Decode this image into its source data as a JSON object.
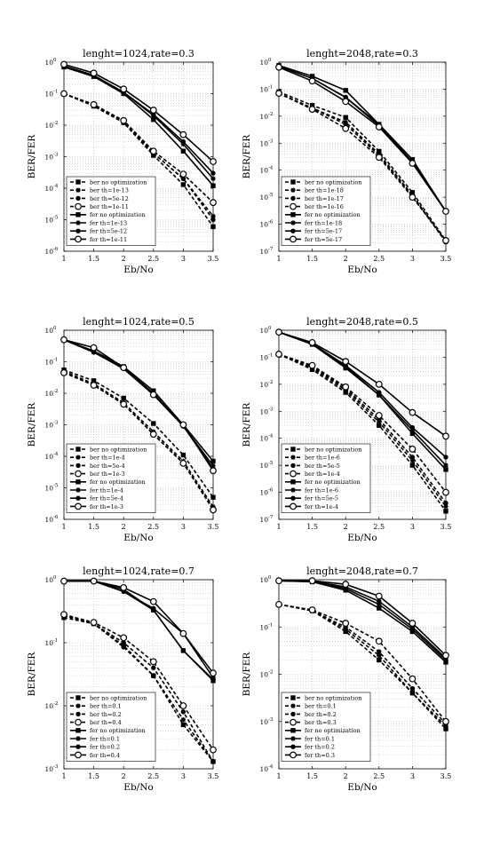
{
  "figure": {
    "ylabel": "BER/FER",
    "xlabel": "Eb/No"
  },
  "chart_data": [
    {
      "type": "line",
      "title": "lenght=1024,rate=0.3",
      "xlabel": "Eb/No",
      "ylabel": "BER/FER",
      "yscale": "log",
      "xlim": [
        1,
        3.5
      ],
      "ylim_exp": [
        -6,
        0
      ],
      "x_ticks": [
        "1",
        "1.5",
        "2",
        "2.5",
        "3",
        "3.5"
      ],
      "y_tick_labels": [
        "10",
        "10",
        "10",
        "10",
        "10",
        "10",
        "10"
      ],
      "y_tick_exponents": [
        "-6",
        "-5",
        "-4",
        "-3",
        "-2",
        "-1",
        "0"
      ],
      "grid": true,
      "legend_position": "lower-left",
      "x": [
        1,
        1.5,
        2,
        2.5,
        3,
        3.5
      ],
      "series": [
        {
          "name": "ber no optimization",
          "style": "dashed",
          "marker": "square",
          "values": [
            0.1,
            0.04,
            0.012,
            0.0011,
            0.00013,
            6e-06
          ]
        },
        {
          "name": "ber th=1e-13",
          "style": "dashed",
          "marker": "star",
          "values": [
            0.1,
            0.045,
            0.013,
            0.0013,
            0.0002,
            1.3e-05
          ]
        },
        {
          "name": "ber th=5e-12",
          "style": "dashed",
          "marker": "dot",
          "values": [
            0.1,
            0.045,
            0.013,
            0.0013,
            0.0002,
            1e-05
          ]
        },
        {
          "name": "ber th=1e-11",
          "style": "dashed",
          "marker": "circle",
          "values": [
            0.1,
            0.045,
            0.014,
            0.0015,
            0.00028,
            3.5e-05
          ]
        },
        {
          "name": "fer no optimization",
          "style": "solid",
          "marker": "square",
          "values": [
            0.7,
            0.35,
            0.1,
            0.015,
            0.0015,
            0.00012
          ]
        },
        {
          "name": "fer th=1e-13",
          "style": "solid",
          "marker": "star",
          "values": [
            0.75,
            0.38,
            0.11,
            0.02,
            0.0025,
            0.0002
          ]
        },
        {
          "name": "fer th=5e-12",
          "style": "solid",
          "marker": "dot",
          "values": [
            0.75,
            0.38,
            0.11,
            0.022,
            0.003,
            0.0003
          ]
        },
        {
          "name": "fer th=1e-11",
          "style": "solid",
          "marker": "circle",
          "values": [
            0.85,
            0.45,
            0.14,
            0.03,
            0.005,
            0.0007
          ]
        }
      ]
    },
    {
      "type": "line",
      "title": "lenght=2048,rate=0.3",
      "xlabel": "Eb/No",
      "ylabel": "BER/FER",
      "yscale": "log",
      "xlim": [
        1,
        3.5
      ],
      "ylim_exp": [
        -7,
        0
      ],
      "x_ticks": [
        "1",
        "1.5",
        "2",
        "2.5",
        "3",
        "3.5"
      ],
      "y_tick_labels": [
        "10",
        "10",
        "10",
        "10",
        "10",
        "10",
        "10",
        "10"
      ],
      "y_tick_exponents": [
        "-7",
        "-6",
        "-5",
        "-4",
        "-3",
        "-2",
        "-1",
        "0"
      ],
      "grid": true,
      "legend_position": "lower-left",
      "x": [
        1,
        1.5,
        2,
        2.5,
        3,
        3.5
      ],
      "series": [
        {
          "name": "ber no optimization",
          "style": "dashed",
          "marker": "square",
          "values": [
            0.08,
            0.025,
            0.009,
            0.0005,
            1.5e-05,
            2.5e-07
          ]
        },
        {
          "name": "ber th=1e-18",
          "style": "dashed",
          "marker": "star",
          "values": [
            0.07,
            0.02,
            0.006,
            0.0004,
            1.2e-05,
            2.2e-07
          ]
        },
        {
          "name": "ber th=1e-17",
          "style": "dashed",
          "marker": "dot",
          "values": [
            0.07,
            0.02,
            0.005,
            0.00035,
            1.1e-05,
            2.2e-07
          ]
        },
        {
          "name": "ber th=1e-16",
          "style": "dashed",
          "marker": "circle",
          "values": [
            0.07,
            0.018,
            0.0035,
            0.0003,
            1e-05,
            2.5e-07
          ]
        },
        {
          "name": "fer no optimization",
          "style": "solid",
          "marker": "square",
          "values": [
            0.75,
            0.3,
            0.09,
            0.005,
            0.00025,
            3e-06
          ]
        },
        {
          "name": "fer th=1e-18",
          "style": "solid",
          "marker": "star",
          "values": [
            0.7,
            0.25,
            0.05,
            0.005,
            0.0002,
            3e-06
          ]
        },
        {
          "name": "fer th=5e-17",
          "style": "solid",
          "marker": "dot",
          "values": [
            0.7,
            0.25,
            0.05,
            0.0045,
            0.0002,
            3e-06
          ]
        },
        {
          "name": "fer th=5e-17",
          "style": "solid",
          "marker": "circle",
          "values": [
            0.65,
            0.2,
            0.035,
            0.004,
            0.00018,
            3e-06
          ]
        }
      ]
    },
    {
      "type": "line",
      "title": "lenght=1024,rate=0.5",
      "xlabel": "Eb/No",
      "ylabel": "BER/FER",
      "yscale": "log",
      "xlim": [
        1,
        3.5
      ],
      "ylim_exp": [
        -6,
        0
      ],
      "x_ticks": [
        "1",
        "1.5",
        "2",
        "2.5",
        "3",
        "3.5"
      ],
      "y_tick_labels": [
        "10",
        "10",
        "10",
        "10",
        "10",
        "10",
        "10"
      ],
      "y_tick_exponents": [
        "-6",
        "-5",
        "-4",
        "-3",
        "-2",
        "-1",
        "0"
      ],
      "grid": true,
      "legend_position": "lower-left",
      "x": [
        1,
        1.5,
        2,
        2.5,
        3,
        3.5
      ],
      "series": [
        {
          "name": "ber no optimization",
          "style": "dashed",
          "marker": "square",
          "values": [
            0.055,
            0.025,
            0.007,
            0.0011,
            0.00011,
            5e-06
          ]
        },
        {
          "name": "ber th=1e-4",
          "style": "dashed",
          "marker": "star",
          "values": [
            0.05,
            0.02,
            0.005,
            0.0006,
            7e-05,
            2.5e-06
          ]
        },
        {
          "name": "ber th=5e-4",
          "style": "dashed",
          "marker": "dot",
          "values": [
            0.045,
            0.018,
            0.0045,
            0.0005,
            6e-05,
            2.2e-06
          ]
        },
        {
          "name": "ber th=1e-3",
          "style": "dashed",
          "marker": "circle",
          "values": [
            0.045,
            0.018,
            0.0045,
            0.0005,
            6e-05,
            2e-06
          ]
        },
        {
          "name": "fer no optimization",
          "style": "solid",
          "marker": "square",
          "values": [
            0.5,
            0.22,
            0.07,
            0.012,
            0.001,
            7e-05
          ]
        },
        {
          "name": "fer th=1e-4",
          "style": "solid",
          "marker": "star",
          "values": [
            0.5,
            0.2,
            0.065,
            0.01,
            0.0009,
            5e-05
          ]
        },
        {
          "name": "fer th=5e-4",
          "style": "solid",
          "marker": "dot",
          "values": [
            0.5,
            0.2,
            0.06,
            0.009,
            0.0009,
            4e-05
          ]
        },
        {
          "name": "fer th=1e-3",
          "style": "solid",
          "marker": "circle",
          "values": [
            0.5,
            0.28,
            0.065,
            0.009,
            0.001,
            3.5e-05
          ]
        }
      ]
    },
    {
      "type": "line",
      "title": "lenght=2048,rate=0.5",
      "xlabel": "Eb/No",
      "ylabel": "BER/FER",
      "yscale": "log",
      "xlim": [
        1,
        3.5
      ],
      "ylim_exp": [
        -7,
        0
      ],
      "x_ticks": [
        "1",
        "1.5",
        "2",
        "2.5",
        "3",
        "3.5"
      ],
      "y_tick_labels": [
        "10",
        "10",
        "10",
        "10",
        "10",
        "10",
        "10",
        "10"
      ],
      "y_tick_exponents": [
        "-7",
        "-6",
        "-5",
        "-4",
        "-3",
        "-2",
        "-1",
        "0"
      ],
      "grid": true,
      "legend_position": "lower-left",
      "x": [
        1,
        1.5,
        2,
        2.5,
        3,
        3.5
      ],
      "series": [
        {
          "name": "ber no optimization",
          "style": "dashed",
          "marker": "square",
          "values": [
            0.13,
            0.035,
            0.005,
            0.0003,
            1e-05,
            2e-07
          ]
        },
        {
          "name": "ber th=1e-6",
          "style": "dashed",
          "marker": "star",
          "values": [
            0.13,
            0.04,
            0.006,
            0.0004,
            1.5e-05,
            3e-07
          ]
        },
        {
          "name": "ber th=5e-5",
          "style": "dashed",
          "marker": "dot",
          "values": [
            0.13,
            0.045,
            0.007,
            0.0005,
            2e-05,
            4e-07
          ]
        },
        {
          "name": "ber th=1e-4",
          "style": "dashed",
          "marker": "circle",
          "values": [
            0.13,
            0.05,
            0.008,
            0.0007,
            4e-05,
            1e-06
          ]
        },
        {
          "name": "fer no optimization",
          "style": "solid",
          "marker": "square",
          "values": [
            0.85,
            0.3,
            0.04,
            0.004,
            0.00015,
            7e-06
          ]
        },
        {
          "name": "fer th=1e-6",
          "style": "solid",
          "marker": "star",
          "values": [
            0.85,
            0.3,
            0.045,
            0.004,
            0.0002,
            1e-05
          ]
        },
        {
          "name": "fer th=5e-5",
          "style": "solid",
          "marker": "dot",
          "values": [
            0.85,
            0.32,
            0.05,
            0.005,
            0.00025,
            2e-05
          ]
        },
        {
          "name": "fer th=1e-4",
          "style": "solid",
          "marker": "circle",
          "values": [
            0.85,
            0.35,
            0.07,
            0.01,
            0.0009,
            0.00012
          ]
        }
      ]
    },
    {
      "type": "line",
      "title": "lenght=1024,rate=0.7",
      "xlabel": "Eb/No",
      "ylabel": "BER/FER",
      "yscale": "log",
      "xlim": [
        1,
        3.5
      ],
      "ylim_exp": [
        -3,
        0
      ],
      "x_ticks": [
        "1",
        "1.5",
        "2",
        "2.5",
        "3",
        "3.5"
      ],
      "y_tick_labels": [
        "10",
        "10",
        "10",
        "10"
      ],
      "y_tick_exponents": [
        "-3",
        "-2",
        "-1",
        "0"
      ],
      "grid": true,
      "legend_position": "lower-left",
      "x": [
        1,
        1.5,
        2,
        2.5,
        3,
        3.5
      ],
      "series": [
        {
          "name": "ber no optimization",
          "style": "dashed",
          "marker": "square",
          "values": [
            0.25,
            0.2,
            0.09,
            0.03,
            0.005,
            0.0013
          ]
        },
        {
          "name": "ber th=0.1",
          "style": "dashed",
          "marker": "star",
          "values": [
            0.27,
            0.2,
            0.085,
            0.03,
            0.006,
            0.0013
          ]
        },
        {
          "name": "ber th=0.2",
          "style": "dashed",
          "marker": "dot",
          "values": [
            0.27,
            0.2,
            0.1,
            0.04,
            0.008,
            0.0013
          ]
        },
        {
          "name": "ber th=0.4",
          "style": "dashed",
          "marker": "circle",
          "values": [
            0.28,
            0.21,
            0.12,
            0.05,
            0.01,
            0.002
          ]
        },
        {
          "name": "fer no optimization",
          "style": "solid",
          "marker": "square",
          "values": [
            0.95,
            0.95,
            0.7,
            0.33,
            0.075,
            0.025
          ]
        },
        {
          "name": "fer th=0.1",
          "style": "solid",
          "marker": "star",
          "values": [
            0.95,
            0.95,
            0.65,
            0.33,
            0.075,
            0.026
          ]
        },
        {
          "name": "fer th=0.2",
          "style": "solid",
          "marker": "dot",
          "values": [
            0.95,
            0.95,
            0.65,
            0.35,
            0.14,
            0.028
          ]
        },
        {
          "name": "fer th=0.4",
          "style": "solid",
          "marker": "circle",
          "values": [
            0.95,
            0.95,
            0.75,
            0.45,
            0.14,
            0.033
          ]
        }
      ]
    },
    {
      "type": "line",
      "title": "lenght=2048,rate=0.7",
      "xlabel": "Eb/No",
      "ylabel": "BER/FER",
      "yscale": "log",
      "xlim": [
        1,
        3.5
      ],
      "ylim_exp": [
        -4,
        0
      ],
      "x_ticks": [
        "1",
        "1.5",
        "2",
        "2.5",
        "3",
        "3.5"
      ],
      "y_tick_labels": [
        "10",
        "10",
        "10",
        "10",
        "10"
      ],
      "y_tick_exponents": [
        "-4",
        "-3",
        "-2",
        "-1",
        "0"
      ],
      "grid": true,
      "legend_position": "lower-left",
      "x": [
        1,
        1.5,
        2,
        2.5,
        3,
        3.5
      ],
      "series": [
        {
          "name": "ber no optimization",
          "style": "dashed",
          "marker": "square",
          "values": [
            0.3,
            0.22,
            0.08,
            0.02,
            0.004,
            0.0007
          ]
        },
        {
          "name": "ber th=0.1",
          "style": "dashed",
          "marker": "star",
          "values": [
            0.3,
            0.22,
            0.09,
            0.025,
            0.004,
            0.0008
          ]
        },
        {
          "name": "ber th=0.2",
          "style": "dashed",
          "marker": "dot",
          "values": [
            0.3,
            0.22,
            0.1,
            0.03,
            0.005,
            0.0009
          ]
        },
        {
          "name": "ber th=0.3",
          "style": "dashed",
          "marker": "circle",
          "values": [
            0.3,
            0.23,
            0.12,
            0.05,
            0.008,
            0.001
          ]
        },
        {
          "name": "fer no optimization",
          "style": "solid",
          "marker": "square",
          "values": [
            0.95,
            0.9,
            0.6,
            0.25,
            0.08,
            0.018
          ]
        },
        {
          "name": "fer th=0.1",
          "style": "solid",
          "marker": "star",
          "values": [
            0.95,
            0.92,
            0.65,
            0.3,
            0.09,
            0.02
          ]
        },
        {
          "name": "fer th=0.2",
          "style": "solid",
          "marker": "dot",
          "values": [
            0.95,
            0.93,
            0.7,
            0.35,
            0.1,
            0.022
          ]
        },
        {
          "name": "fer th=0.3",
          "style": "solid",
          "marker": "circle",
          "values": [
            0.95,
            0.95,
            0.8,
            0.45,
            0.12,
            0.025
          ]
        }
      ]
    }
  ]
}
